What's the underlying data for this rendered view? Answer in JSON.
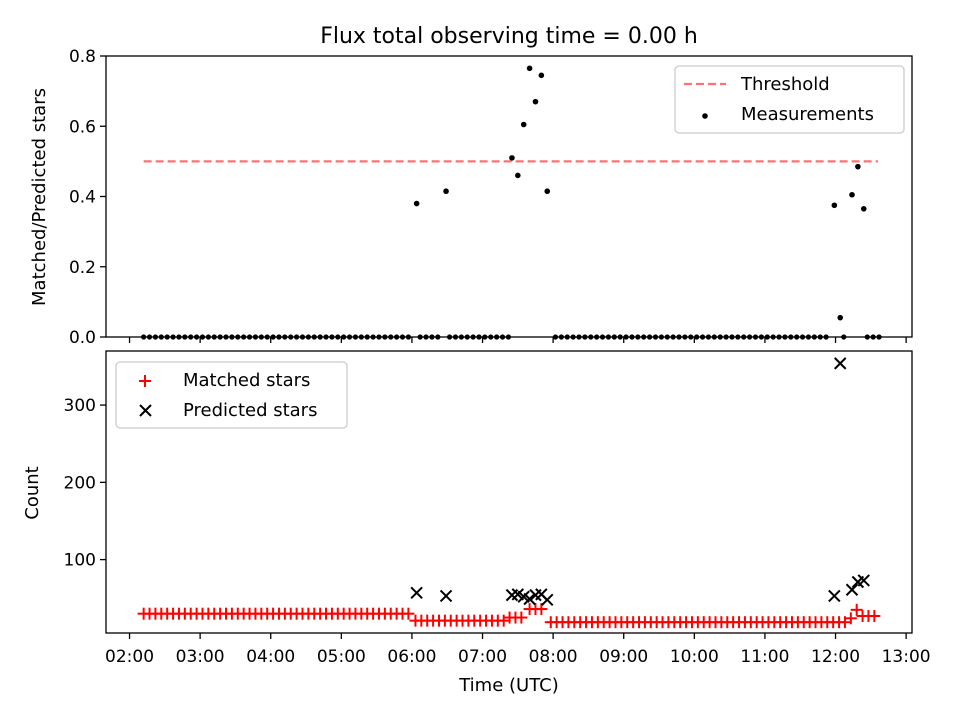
{
  "chart_data": [
    {
      "type": "scatter",
      "title": "Flux total observing time = 0.00 h",
      "ylabel": "Matched/Predicted stars",
      "xlabel": "",
      "xlim": [
        "02:00",
        "13:00"
      ],
      "ylim": [
        0,
        0.8
      ],
      "yticks": [
        "0.0",
        "0.2",
        "0.4",
        "0.6",
        "0.8"
      ],
      "legend_position": "top-right",
      "threshold": {
        "name": "Threshold",
        "value": 0.5,
        "x_range": [
          "02:12",
          "12:36"
        ],
        "color": "#ff7070",
        "style": "dashed"
      },
      "series": [
        {
          "name": "Measurements",
          "color": "#000000",
          "zero_points": {
            "start": "02:12",
            "step_minutes": 5,
            "count": 126
          },
          "points": [
            {
              "x": "06:04",
              "y": 0.38
            },
            {
              "x": "06:29",
              "y": 0.415
            },
            {
              "x": "07:25",
              "y": 0.51
            },
            {
              "x": "07:30",
              "y": 0.46
            },
            {
              "x": "07:35",
              "y": 0.605
            },
            {
              "x": "07:40",
              "y": 0.765
            },
            {
              "x": "07:45",
              "y": 0.67
            },
            {
              "x": "07:50",
              "y": 0.745
            },
            {
              "x": "07:55",
              "y": 0.415
            },
            {
              "x": "11:59",
              "y": 0.375
            },
            {
              "x": "12:04",
              "y": 0.055
            },
            {
              "x": "12:14",
              "y": 0.405
            },
            {
              "x": "12:19",
              "y": 0.485
            },
            {
              "x": "12:24",
              "y": 0.365
            }
          ]
        }
      ]
    },
    {
      "type": "scatter",
      "title": "",
      "ylabel": "Count",
      "xlabel": "Time (UTC)",
      "xlim": [
        "02:00",
        "13:00"
      ],
      "ylim": [
        5,
        370
      ],
      "yticks": [
        "100",
        "200",
        "300"
      ],
      "xticks": [
        "02:00",
        "03:00",
        "04:00",
        "05:00",
        "06:00",
        "07:00",
        "08:00",
        "09:00",
        "10:00",
        "11:00",
        "12:00",
        "13:00"
      ],
      "legend_position": "top-left",
      "series": [
        {
          "name": "Matched stars",
          "color": "#ff0000",
          "marker": "plus",
          "segments": [
            {
              "start": "02:12",
              "end": "05:58",
              "step_minutes": 5,
              "y": 30
            },
            {
              "start": "06:03",
              "end": "07:18",
              "step_minutes": 5,
              "y": 21
            },
            {
              "start": "07:23",
              "end": "07:35",
              "step_minutes": 5,
              "y": 25
            },
            {
              "start": "07:40",
              "end": "07:52",
              "step_minutes": 5,
              "y": 36
            },
            {
              "start": "07:58",
              "end": "12:08",
              "step_minutes": 5,
              "y": 19
            },
            {
              "start": "12:13",
              "end": "12:13",
              "step_minutes": 5,
              "y": 24
            },
            {
              "start": "12:18",
              "end": "12:18",
              "step_minutes": 5,
              "y": 35
            },
            {
              "start": "12:23",
              "end": "12:33",
              "step_minutes": 5,
              "y": 27
            }
          ]
        },
        {
          "name": "Predicted stars",
          "color": "#000000",
          "marker": "x",
          "points": [
            {
              "x": "06:04",
              "y": 57
            },
            {
              "x": "06:29",
              "y": 53
            },
            {
              "x": "07:25",
              "y": 54
            },
            {
              "x": "07:30",
              "y": 55
            },
            {
              "x": "07:35",
              "y": 52
            },
            {
              "x": "07:40",
              "y": 49
            },
            {
              "x": "07:45",
              "y": 54
            },
            {
              "x": "07:50",
              "y": 55
            },
            {
              "x": "07:55",
              "y": 48
            },
            {
              "x": "11:59",
              "y": 53
            },
            {
              "x": "12:04",
              "y": 354
            },
            {
              "x": "12:14",
              "y": 61
            },
            {
              "x": "12:19",
              "y": 71
            },
            {
              "x": "12:24",
              "y": 73
            }
          ]
        }
      ]
    }
  ]
}
